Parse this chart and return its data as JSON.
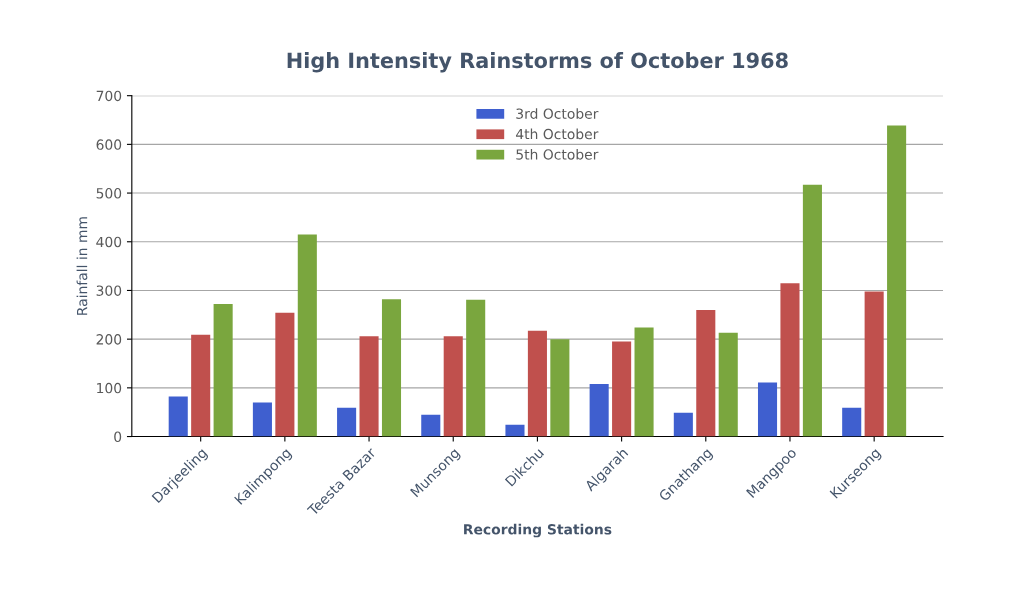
{
  "chart_data": {
    "type": "bar",
    "title": "High Intensity Rainstorms of October 1968",
    "xlabel": "Recording Stations",
    "ylabel": "Rainfall in mm",
    "categories": [
      "Darjeeling",
      "Kalimpong",
      "Teesta Bazar",
      "Munsong",
      "Dikchu",
      "Algarah",
      "Gnathang",
      "Mangpoo",
      "Kurseong"
    ],
    "series": [
      {
        "name": "3rd October",
        "color": "#3f5fcf",
        "values": [
          82,
          70,
          59,
          45,
          24,
          108,
          49,
          111,
          59
        ]
      },
      {
        "name": "4th October",
        "color": "#c0504d",
        "values": [
          209,
          254,
          206,
          206,
          217,
          195,
          260,
          315,
          298
        ]
      },
      {
        "name": "5th October",
        "color": "#7aa63e",
        "values": [
          272,
          415,
          282,
          281,
          200,
          224,
          213,
          517,
          639
        ]
      }
    ],
    "ylim": [
      0,
      700
    ],
    "yticks": [
      0,
      100,
      200,
      300,
      400,
      500,
      600,
      700
    ],
    "grid": "y",
    "legend": "top"
  }
}
